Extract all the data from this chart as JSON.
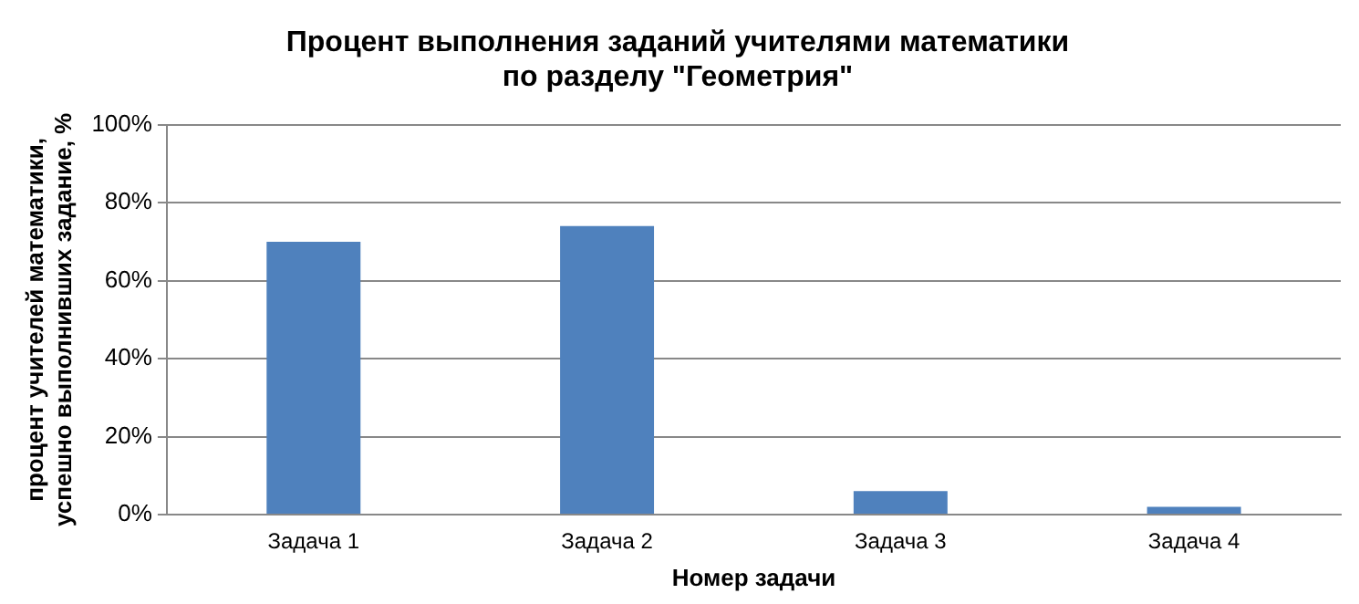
{
  "chart_data": {
    "type": "bar",
    "title": [
      "Процент выполнения заданий учителями математики",
      "по разделу \"Геометрия\""
    ],
    "xlabel": "Номер задачи",
    "ylabel": [
      "процент учителей математики,",
      "успешно выполнивших задание, %"
    ],
    "categories": [
      "Задача 1",
      "Задача 2",
      "Задача 3",
      "Задача 4"
    ],
    "values": [
      70,
      74,
      6,
      2
    ],
    "color": "#4f81bd",
    "ylim": [
      0,
      100
    ],
    "yticks": [
      {
        "value": 0,
        "label": "0%"
      },
      {
        "value": 20,
        "label": "20%"
      },
      {
        "value": 40,
        "label": "40%"
      },
      {
        "value": 60,
        "label": "60%"
      },
      {
        "value": 80,
        "label": "80%"
      },
      {
        "value": 100,
        "label": "100%"
      }
    ],
    "grid": "y",
    "legend": false
  }
}
